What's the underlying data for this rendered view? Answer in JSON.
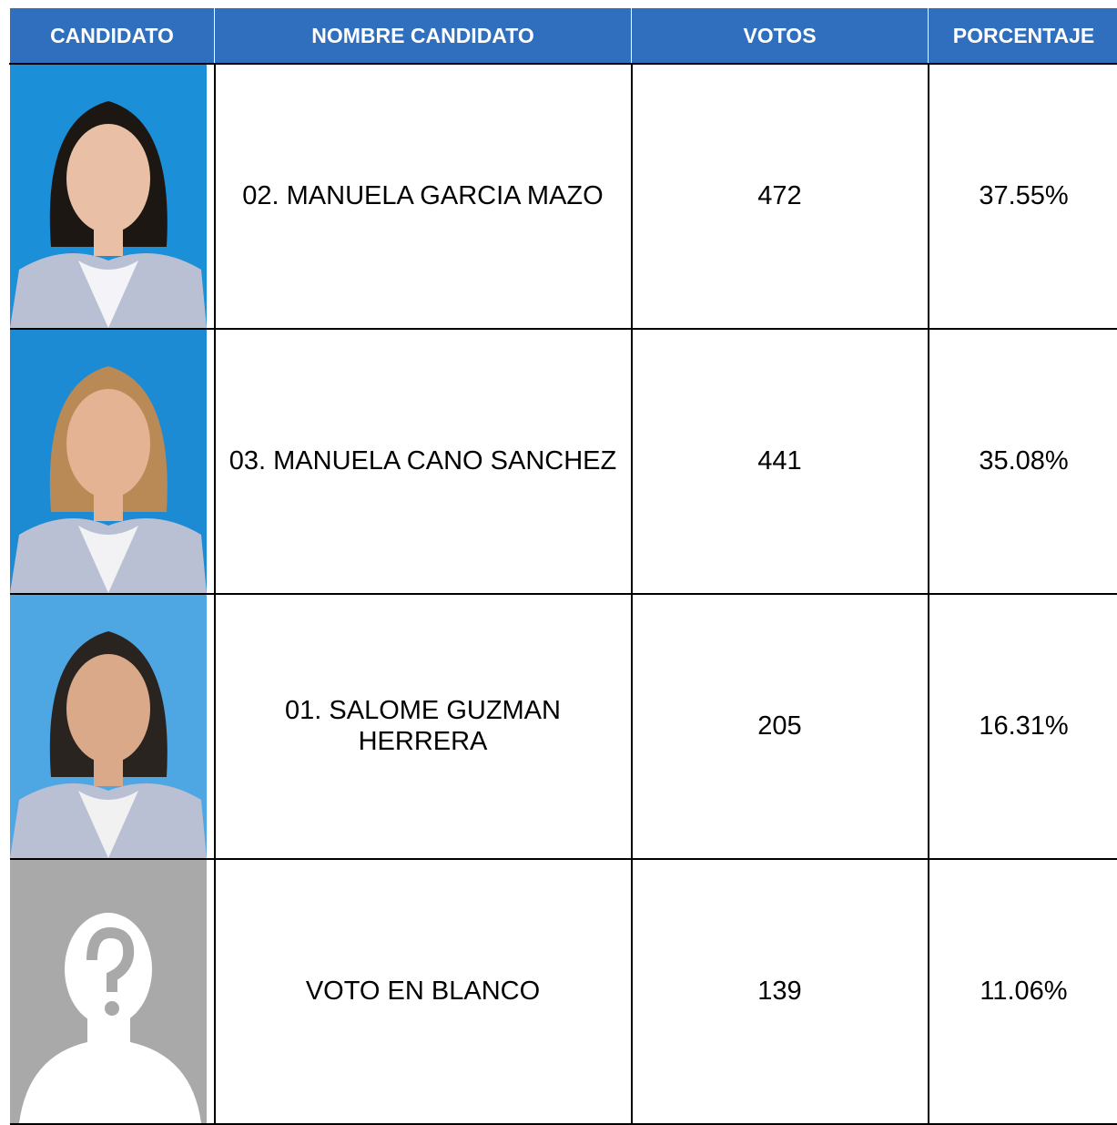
{
  "table": {
    "headers": [
      "CANDIDATO",
      "NOMBRE CANDIDATO",
      "VOTOS",
      "PORCENTAJE"
    ],
    "rows": [
      {
        "name": "02. MANUELA GARCIA MAZO",
        "votes": 472,
        "percentage": "37.55%"
      },
      {
        "name": "03. MANUELA CANO SANCHEZ",
        "votes": 441,
        "percentage": "35.08%"
      },
      {
        "name": "01. SALOME GUZMAN HERRERA",
        "votes": 205,
        "percentage": "16.31%"
      },
      {
        "name": "VOTO EN BLANCO",
        "votes": 139,
        "percentage": "11.06%"
      }
    ]
  }
}
